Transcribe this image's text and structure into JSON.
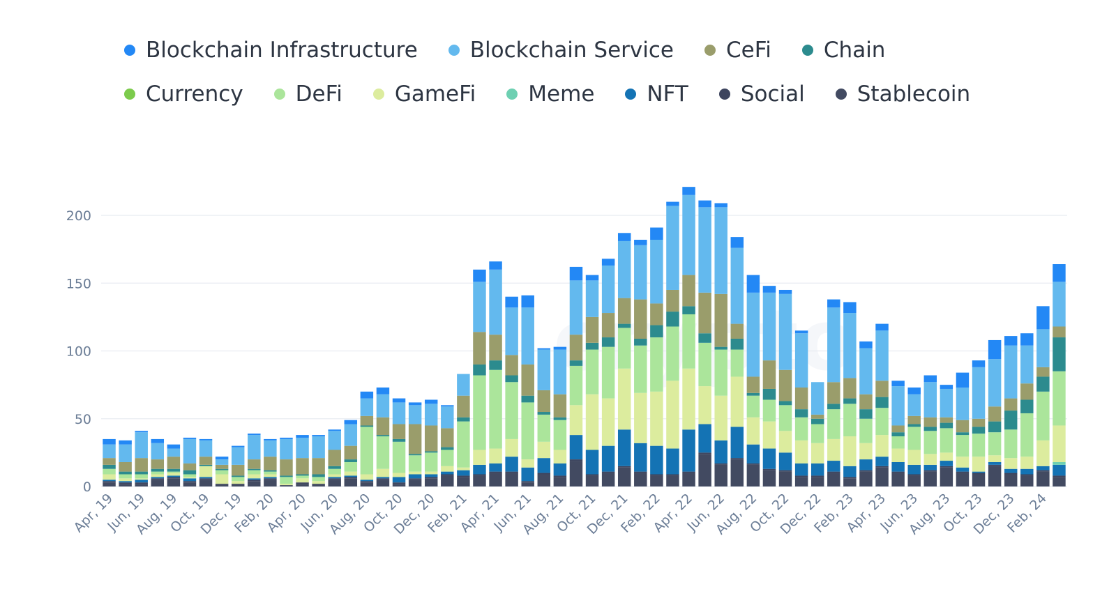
{
  "colors": {
    "Blockchain Infrastructure": "#2388f5",
    "Blockchain Service": "#63b9ee",
    "CeFi": "#9a9d6b",
    "Chain": "#2c8b8e",
    "Currency": "#7ccb4c",
    "DeFi": "#abe59b",
    "GameFi": "#dcec9e",
    "Meme": "#6ed0b2",
    "NFT": "#1473b4",
    "Social": "#3d445e",
    "Stablecoin": "#424a61",
    "grid": "#eceff4",
    "axis_text": "#6b7d96"
  },
  "legend": {
    "rows": [
      [
        "Blockchain Infrastructure",
        "Blockchain Service",
        "CeFi",
        "Chain"
      ],
      [
        "Currency",
        "DeFi",
        "GameFi",
        "Meme",
        "NFT",
        "Social",
        "Stablecoin"
      ]
    ]
  },
  "watermark": "crypto",
  "chart_data": {
    "type": "bar",
    "stacked": true,
    "ylim": [
      0,
      230
    ],
    "yticks": [
      0,
      50,
      100,
      150,
      200
    ],
    "grid": true,
    "legend_position": "top",
    "categories": [
      "Apr, 19",
      "May, 19",
      "Jun, 19",
      "Jul, 19",
      "Aug, 19",
      "Sep, 19",
      "Oct, 19",
      "Nov, 19",
      "Dec, 19",
      "Jan, 20",
      "Feb, 20",
      "Mar, 20",
      "Apr, 20",
      "May, 20",
      "Jun, 20",
      "Jul, 20",
      "Aug, 20",
      "Sep, 20",
      "Oct, 20",
      "Nov, 20",
      "Dec, 20",
      "Jan, 21",
      "Feb, 21",
      "Mar, 21",
      "Apr, 21",
      "May, 21",
      "Jun, 21",
      "Jul, 21",
      "Aug, 21",
      "Sep, 21",
      "Oct, 21",
      "Nov, 21",
      "Dec, 21",
      "Jan, 22",
      "Feb, 22",
      "Mar, 22",
      "Apr, 22",
      "May, 22",
      "Jun, 22",
      "Jul, 22",
      "Aug, 22",
      "Sep, 22",
      "Oct, 22",
      "Nov, 22",
      "Dec, 22",
      "Jan, 23",
      "Feb, 23",
      "Mar, 23",
      "Apr, 23",
      "May, 23",
      "Jun, 23",
      "Jul, 23",
      "Aug, 23",
      "Sep, 23",
      "Oct, 23",
      "Nov, 23",
      "Dec, 23",
      "Jan, 24",
      "Feb, 24",
      "Mar, 24"
    ],
    "visible_tick_labels": [
      "Apr, 19",
      "Jun, 19",
      "Aug, 19",
      "Oct, 19",
      "Dec, 19",
      "Feb, 20",
      "Apr, 20",
      "Jun, 20",
      "Aug, 20",
      "Oct, 20",
      "Dec, 20",
      "Feb, 21",
      "Apr, 21",
      "Jun, 21",
      "Aug, 21",
      "Oct, 21",
      "Dec, 21",
      "Feb, 22",
      "Apr, 22",
      "Jun, 22",
      "Aug, 22",
      "Oct, 22",
      "Dec, 22",
      "Feb, 23",
      "Apr, 23",
      "Jun, 23",
      "Aug, 23",
      "Oct, 23",
      "Dec, 23",
      "Feb, 24"
    ],
    "series": [
      {
        "name": "Stablecoin",
        "values": [
          3,
          2,
          2,
          5,
          6,
          3,
          5,
          2,
          2,
          4,
          5,
          1,
          2,
          2,
          5,
          6,
          3,
          5,
          2,
          5,
          6,
          8,
          7,
          8,
          10,
          10,
          3,
          9,
          7,
          19,
          8,
          10,
          14,
          10,
          8,
          8,
          10,
          24,
          16,
          20,
          16,
          12,
          11,
          7,
          7,
          10,
          6,
          11,
          14,
          10,
          8,
          11,
          14,
          10,
          9,
          15,
          9,
          8,
          11,
          7
        ]
      },
      {
        "name": "Social",
        "values": [
          1,
          1,
          1,
          1,
          1,
          1,
          1,
          0,
          0,
          1,
          1,
          0,
          1,
          0,
          1,
          1,
          1,
          1,
          1,
          1,
          1,
          1,
          1,
          1,
          1,
          1,
          1,
          1,
          1,
          1,
          1,
          1,
          1,
          1,
          1,
          1,
          1,
          1,
          1,
          1,
          1,
          1,
          1,
          1,
          1,
          1,
          1,
          1,
          1,
          1,
          1,
          1,
          1,
          1,
          1,
          1,
          1,
          1,
          1,
          1
        ]
      },
      {
        "name": "NFT",
        "values": [
          1,
          1,
          2,
          1,
          1,
          2,
          1,
          0,
          0,
          1,
          1,
          0,
          0,
          0,
          1,
          1,
          1,
          1,
          4,
          3,
          2,
          2,
          4,
          7,
          6,
          11,
          10,
          11,
          9,
          18,
          18,
          19,
          27,
          21,
          21,
          19,
          31,
          21,
          17,
          23,
          14,
          15,
          13,
          9,
          9,
          8,
          8,
          8,
          7,
          7,
          7,
          4,
          4,
          3,
          1,
          2,
          3,
          4,
          3,
          8
        ]
      },
      {
        "name": "Meme",
        "values": [
          0,
          0,
          0,
          0,
          0,
          0,
          0,
          0,
          0,
          0,
          0,
          0,
          0,
          0,
          0,
          0,
          0,
          0,
          0,
          0,
          0,
          0,
          0,
          0,
          0,
          0,
          0,
          0,
          0,
          0,
          0,
          0,
          0,
          0,
          0,
          0,
          0,
          0,
          0,
          0,
          0,
          0,
          0,
          0,
          0,
          0,
          0,
          0,
          0,
          0,
          0,
          0,
          0,
          0,
          0,
          0,
          0,
          0,
          0,
          2
        ]
      },
      {
        "name": "GameFi",
        "values": [
          4,
          2,
          1,
          2,
          2,
          1,
          8,
          7,
          2,
          3,
          2,
          1,
          3,
          2,
          2,
          3,
          4,
          6,
          3,
          2,
          2,
          4,
          2,
          11,
          11,
          13,
          6,
          12,
          10,
          22,
          41,
          35,
          45,
          37,
          40,
          50,
          45,
          28,
          33,
          37,
          20,
          20,
          16,
          17,
          15,
          16,
          22,
          12,
          16,
          10,
          11,
          8,
          6,
          8,
          11,
          5,
          8,
          9,
          19,
          27
        ]
      },
      {
        "name": "DeFi",
        "values": [
          4,
          3,
          3,
          2,
          1,
          2,
          0,
          3,
          3,
          3,
          2,
          5,
          2,
          3,
          4,
          7,
          35,
          24,
          23,
          12,
          14,
          12,
          34,
          55,
          58,
          42,
          42,
          20,
          22,
          29,
          33,
          38,
          30,
          35,
          40,
          40,
          40,
          32,
          34,
          20,
          16,
          16,
          19,
          17,
          14,
          22,
          24,
          18,
          20,
          9,
          17,
          17,
          18,
          16,
          17,
          17,
          21,
          32,
          36,
          40
        ]
      },
      {
        "name": "Currency",
        "values": [
          0,
          0,
          0,
          0,
          0,
          0,
          0,
          0,
          0,
          0,
          0,
          0,
          0,
          0,
          0,
          0,
          0,
          0,
          0,
          0,
          0,
          0,
          0,
          0,
          0,
          0,
          0,
          0,
          0,
          0,
          0,
          0,
          0,
          0,
          0,
          0,
          0,
          0,
          0,
          0,
          0,
          0,
          0,
          0,
          0,
          0,
          0,
          0,
          0,
          0,
          0,
          0,
          0,
          0,
          0,
          0,
          0,
          0,
          0,
          0
        ]
      },
      {
        "name": "Chain",
        "values": [
          3,
          2,
          2,
          2,
          2,
          3,
          1,
          1,
          1,
          1,
          1,
          1,
          1,
          2,
          2,
          2,
          1,
          1,
          2,
          1,
          1,
          2,
          3,
          8,
          7,
          5,
          5,
          2,
          2,
          4,
          5,
          7,
          3,
          5,
          9,
          11,
          6,
          7,
          2,
          8,
          2,
          8,
          3,
          6,
          4,
          4,
          4,
          7,
          8,
          3,
          2,
          3,
          4,
          2,
          5,
          8,
          14,
          10,
          11,
          25
        ]
      },
      {
        "name": "CeFi",
        "values": [
          5,
          7,
          10,
          7,
          9,
          5,
          6,
          3,
          8,
          7,
          10,
          12,
          12,
          12,
          12,
          10,
          7,
          13,
          11,
          22,
          19,
          14,
          16,
          24,
          19,
          15,
          23,
          16,
          17,
          19,
          19,
          18,
          19,
          29,
          16,
          16,
          23,
          30,
          39,
          11,
          12,
          21,
          23,
          16,
          3,
          16,
          15,
          11,
          12,
          5,
          6,
          7,
          4,
          9,
          6,
          11,
          9,
          12,
          7,
          8
        ]
      },
      {
        "name": "Blockchain Service",
        "values": [
          10,
          13,
          19,
          12,
          6,
          18,
          12,
          4,
          13,
          18,
          12,
          15,
          15,
          16,
          14,
          16,
          13,
          17,
          16,
          14,
          16,
          16,
          16,
          37,
          48,
          35,
          42,
          30,
          33,
          40,
          27,
          35,
          42,
          40,
          47,
          62,
          59,
          63,
          64,
          56,
          62,
          50,
          56,
          40,
          24,
          55,
          48,
          34,
          37,
          29,
          16,
          26,
          21,
          24,
          38,
          35,
          39,
          28,
          28,
          33
        ]
      },
      {
        "name": "Blockchain Infrastructure",
        "values": [
          4,
          3,
          1,
          3,
          3,
          1,
          1,
          2,
          1,
          1,
          1,
          1,
          2,
          1,
          1,
          3,
          5,
          5,
          3,
          2,
          3,
          1,
          0,
          9,
          6,
          8,
          9,
          1,
          2,
          10,
          4,
          5,
          6,
          4,
          9,
          3,
          6,
          5,
          3,
          8,
          13,
          5,
          3,
          2,
          0,
          6,
          8,
          5,
          5,
          4,
          5,
          5,
          3,
          11,
          5,
          14,
          7,
          9,
          17,
          13
        ]
      }
    ]
  }
}
